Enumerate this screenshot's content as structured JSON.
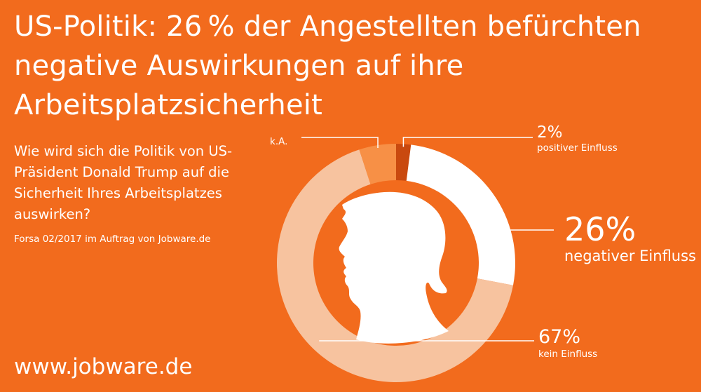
{
  "title": "US-Politik: 26 % der Angestellten befürchten negative Auswirkungen auf ihre Arbeitsplatzsicherheit",
  "question": "Wie wird sich die Politik von US-Präsident Donald Trump auf die Sicherheit Ihres Arbeitsplatzes auswirken?",
  "source": "Forsa 02/2017 im Auftrag von Jobware.de",
  "footer": "www.jobware.de",
  "colors": {
    "background": "#f26b1d",
    "positive": "#c9490f",
    "negative": "#ffffff",
    "none": "#f7c39f",
    "na": "#f79046"
  },
  "chart_data": {
    "type": "donut",
    "center_icon": "trump-silhouette-icon",
    "slices": [
      {
        "value": 2,
        "value_label": "2%",
        "label": "positiver Einfluss",
        "color": "#c9490f"
      },
      {
        "value": 26,
        "value_label": "26%",
        "label": "negativer Einfluss",
        "color": "#ffffff"
      },
      {
        "value": 67,
        "value_label": "67%",
        "label": "kein Einfluss",
        "color": "#f7c39f"
      },
      {
        "value": 5,
        "value_label": "",
        "label": "k.A.",
        "color": "#f79046"
      }
    ]
  }
}
